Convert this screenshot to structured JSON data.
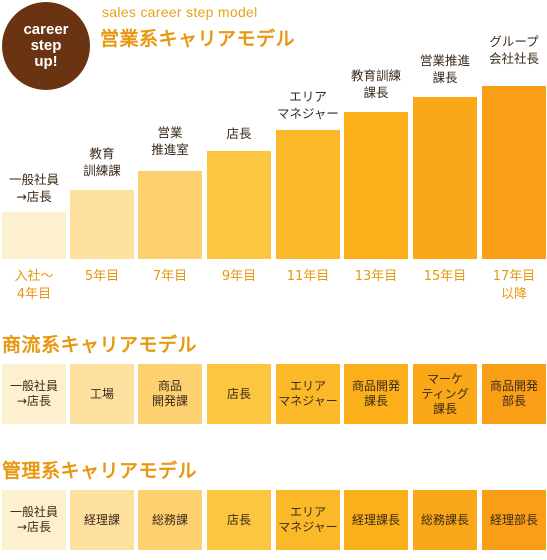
{
  "badge": {
    "lines": [
      "career",
      "step",
      "up!"
    ]
  },
  "sales": {
    "subtitle": "sales career step model",
    "title": "営業系キャリアモデル",
    "steps": [
      {
        "label": "一般社員\n→店長",
        "year": "入社〜\n4年目",
        "color": "#fdf0cf"
      },
      {
        "label": "教育\n訓練課",
        "year": "5年目",
        "color": "#fde0a0"
      },
      {
        "label": "営業\n推進室",
        "year": "7年目",
        "color": "#fdd070"
      },
      {
        "label": "店長",
        "year": "9年目",
        "color": "#fcc640"
      },
      {
        "label": "エリア\nマネジャー",
        "year": "11年目",
        "color": "#fbb92a"
      },
      {
        "label": "教育訓練\n課長",
        "year": "13年目",
        "color": "#fbb01a"
      },
      {
        "label": "営業推進\n課長",
        "year": "15年目",
        "color": "#faa818"
      },
      {
        "label": "グループ\n会社社長",
        "year": "17年目\n以降",
        "color": "#f99e16"
      }
    ]
  },
  "commerce": {
    "title": "商流系キャリアモデル",
    "cells": [
      {
        "label": "一般社員\n→店長",
        "color": "#fdf0cf"
      },
      {
        "label": "工場",
        "color": "#fde0a0"
      },
      {
        "label": "商品\n開発課",
        "color": "#fdd070"
      },
      {
        "label": "店長",
        "color": "#fcc640"
      },
      {
        "label": "エリア\nマネジャー",
        "color": "#fbb92a"
      },
      {
        "label": "商品開発\n課長",
        "color": "#fbb01a"
      },
      {
        "label": "マーケ\nティング\n課長",
        "color": "#faa818"
      },
      {
        "label": "商品開発\n部長",
        "color": "#f99e16"
      }
    ]
  },
  "management": {
    "title": "管理系キャリアモデル",
    "cells": [
      {
        "label": "一般社員\n→店長",
        "color": "#fdf0cf"
      },
      {
        "label": "経理課",
        "color": "#fde0a0"
      },
      {
        "label": "総務課",
        "color": "#fdd070"
      },
      {
        "label": "店長",
        "color": "#fcc640"
      },
      {
        "label": "エリア\nマネジャー",
        "color": "#fbb92a"
      },
      {
        "label": "経理課長",
        "color": "#fbb01a"
      },
      {
        "label": "総務課長",
        "color": "#faa818"
      },
      {
        "label": "経理部長",
        "color": "#f99e16"
      }
    ]
  }
}
